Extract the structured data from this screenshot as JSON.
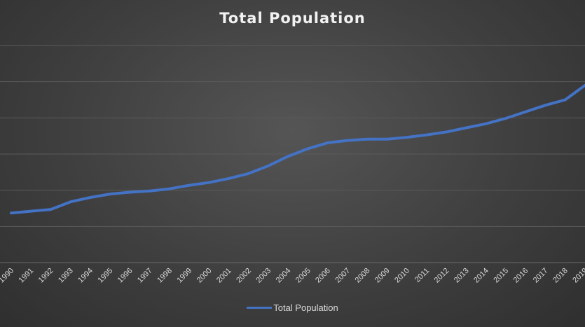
{
  "chart_data": {
    "type": "line",
    "title": "Total Population",
    "xlabel": "",
    "ylabel": "",
    "x": [
      "1990",
      "1991",
      "1992",
      "1993",
      "1994",
      "1995",
      "1996",
      "1997",
      "1998",
      "1999",
      "2000",
      "2001",
      "2002",
      "2003",
      "2004",
      "2005",
      "2006",
      "2007",
      "2008",
      "2009",
      "2010",
      "2011",
      "2012",
      "2013",
      "2014",
      "2015",
      "2016",
      "2017",
      "2018",
      "2019"
    ],
    "series": [
      {
        "name": "Total Population",
        "color": "#4472c4",
        "values": [
          1.48,
          1.68,
          1.88,
          2.72,
          3.2,
          3.58,
          3.78,
          3.92,
          4.15,
          4.55,
          4.85,
          5.3,
          5.85,
          6.7,
          7.75,
          8.6,
          9.25,
          9.5,
          9.65,
          9.65,
          9.85,
          10.12,
          10.45,
          10.9,
          11.35,
          11.95,
          12.68,
          13.4,
          14.0,
          15.6
        ]
      }
    ],
    "ylim": [
      -4,
      20
    ],
    "y_gridlines": [
      -4,
      0,
      4,
      8,
      12,
      16,
      20
    ],
    "grid": true,
    "legend": "bottom"
  }
}
